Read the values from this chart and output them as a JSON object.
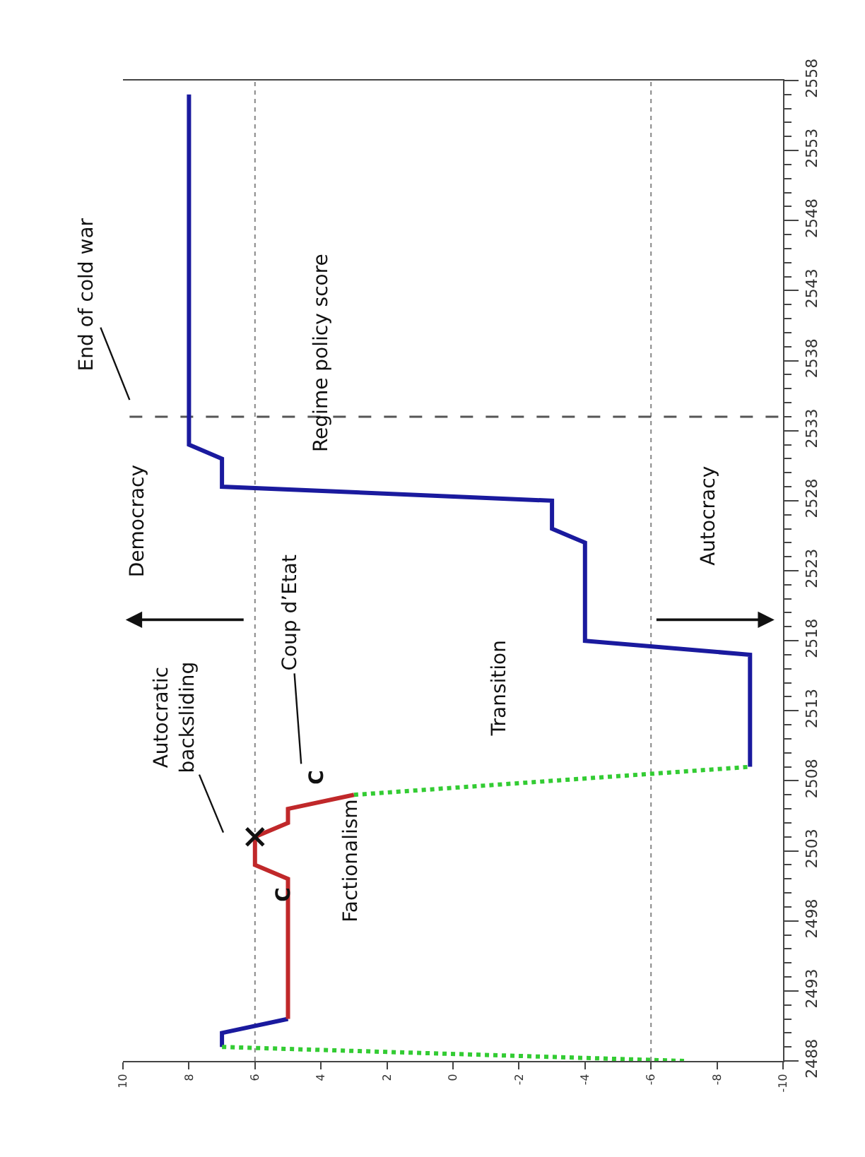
{
  "chart_data": {
    "type": "line",
    "xlim": [
      10,
      -10
    ],
    "ylim": [
      2488,
      2558
    ],
    "xticks": [
      10,
      8,
      6,
      4,
      2,
      0,
      -2,
      -4,
      -6,
      -8,
      -10
    ],
    "yticks": [
      2488,
      {
        "value": 2489,
        "label": null
      },
      {
        "value": 2490,
        "label": null
      },
      {
        "value": 2491,
        "label": null
      },
      {
        "value": 2492,
        "label": null
      },
      2493,
      {
        "value": 2494,
        "label": null
      },
      {
        "value": 2495,
        "label": null
      },
      {
        "value": 2496,
        "label": null
      },
      {
        "value": 2497,
        "label": null
      },
      2498,
      {
        "value": 2499,
        "label": null
      },
      {
        "value": 2500,
        "label": null
      },
      {
        "value": 2501,
        "label": null
      },
      {
        "value": 2502,
        "label": null
      },
      2503,
      {
        "value": 2504,
        "label": null
      },
      {
        "value": 2505,
        "label": null
      },
      {
        "value": 2506,
        "label": null
      },
      {
        "value": 2507,
        "label": null
      },
      2508,
      {
        "value": 2509,
        "label": null
      },
      {
        "value": 2510,
        "label": null
      },
      {
        "value": 2511,
        "label": null
      },
      {
        "value": 2512,
        "label": null
      },
      2513,
      {
        "value": 2514,
        "label": null
      },
      {
        "value": 2515,
        "label": null
      },
      {
        "value": 2516,
        "label": null
      },
      {
        "value": 2517,
        "label": null
      },
      2518,
      {
        "value": 2519,
        "label": null
      },
      {
        "value": 2520,
        "label": null
      },
      {
        "value": 2521,
        "label": null
      },
      {
        "value": 2522,
        "label": null
      },
      2523,
      {
        "value": 2524,
        "label": null
      },
      {
        "value": 2525,
        "label": null
      },
      {
        "value": 2526,
        "label": null
      },
      {
        "value": 2527,
        "label": null
      },
      2528,
      {
        "value": 2529,
        "label": null
      },
      {
        "value": 2530,
        "label": null
      },
      {
        "value": 2531,
        "label": null
      },
      {
        "value": 2532,
        "label": null
      },
      2533,
      {
        "value": 2534,
        "label": null
      },
      {
        "value": 2535,
        "label": null
      },
      {
        "value": 2536,
        "label": null
      },
      {
        "value": 2537,
        "label": null
      },
      2538,
      {
        "value": 2539,
        "label": null
      },
      {
        "value": 2540,
        "label": null
      },
      {
        "value": 2541,
        "label": null
      },
      {
        "value": 2542,
        "label": null
      },
      2543,
      {
        "value": 2544,
        "label": null
      },
      {
        "value": 2545,
        "label": null
      },
      {
        "value": 2546,
        "label": null
      },
      {
        "value": 2547,
        "label": null
      },
      2548,
      {
        "value": 2549,
        "label": null
      },
      {
        "value": 2550,
        "label": null
      },
      {
        "value": 2551,
        "label": null
      },
      {
        "value": 2552,
        "label": null
      },
      2553,
      {
        "value": 2554,
        "label": null
      },
      {
        "value": 2555,
        "label": null
      },
      {
        "value": 2556,
        "label": null
      },
      {
        "value": 2557,
        "label": null
      },
      2558
    ],
    "grid": false,
    "marker": "none",
    "series": [
      {
        "type": "line",
        "color": "#1a1a9e",
        "line_style": "solid",
        "x": [
          7,
          7,
          5,
          null,
          -9,
          -9,
          -4,
          -4,
          -3,
          -3,
          7,
          7,
          8,
          8
        ],
        "values": [
          2489,
          2490,
          2491,
          null,
          2509,
          2517,
          2518,
          2525,
          2526,
          2528,
          2529,
          2531,
          2532,
          2557
        ]
      },
      {
        "type": "line",
        "color": "#c0282a",
        "line_style": "solid",
        "x": [
          5,
          5,
          6,
          6,
          5,
          5,
          3
        ],
        "values": [
          2491,
          2501,
          2502,
          2504,
          2505,
          2506,
          2507
        ]
      },
      {
        "type": "line",
        "color": "#33cc33",
        "line_style": "dotted",
        "x": [
          -7,
          7,
          null,
          3,
          -9
        ],
        "values": [
          2488,
          2489,
          null,
          2507,
          2509
        ]
      },
      {
        "type": "scatter",
        "color": "#111111",
        "marker": "cross",
        "x": [
          6
        ],
        "values": [
          2504
        ]
      }
    ],
    "ref_lines": [
      {
        "axis": "x",
        "value": 6,
        "line_style": "dotted",
        "color": "#888888"
      },
      {
        "axis": "x",
        "value": -6,
        "line_style": "dotted",
        "color": "#888888"
      },
      {
        "axis": "y",
        "value": 2534,
        "line_style": "dashed",
        "color": "#555555",
        "label": "End of cold war"
      }
    ],
    "annotations": [
      "Regime policy score",
      "Democracy",
      "Autocracy",
      "Autocratic\nbacksliding",
      "Coup d’Etat",
      "C",
      "C",
      "Factionalism",
      "Transition"
    ]
  }
}
